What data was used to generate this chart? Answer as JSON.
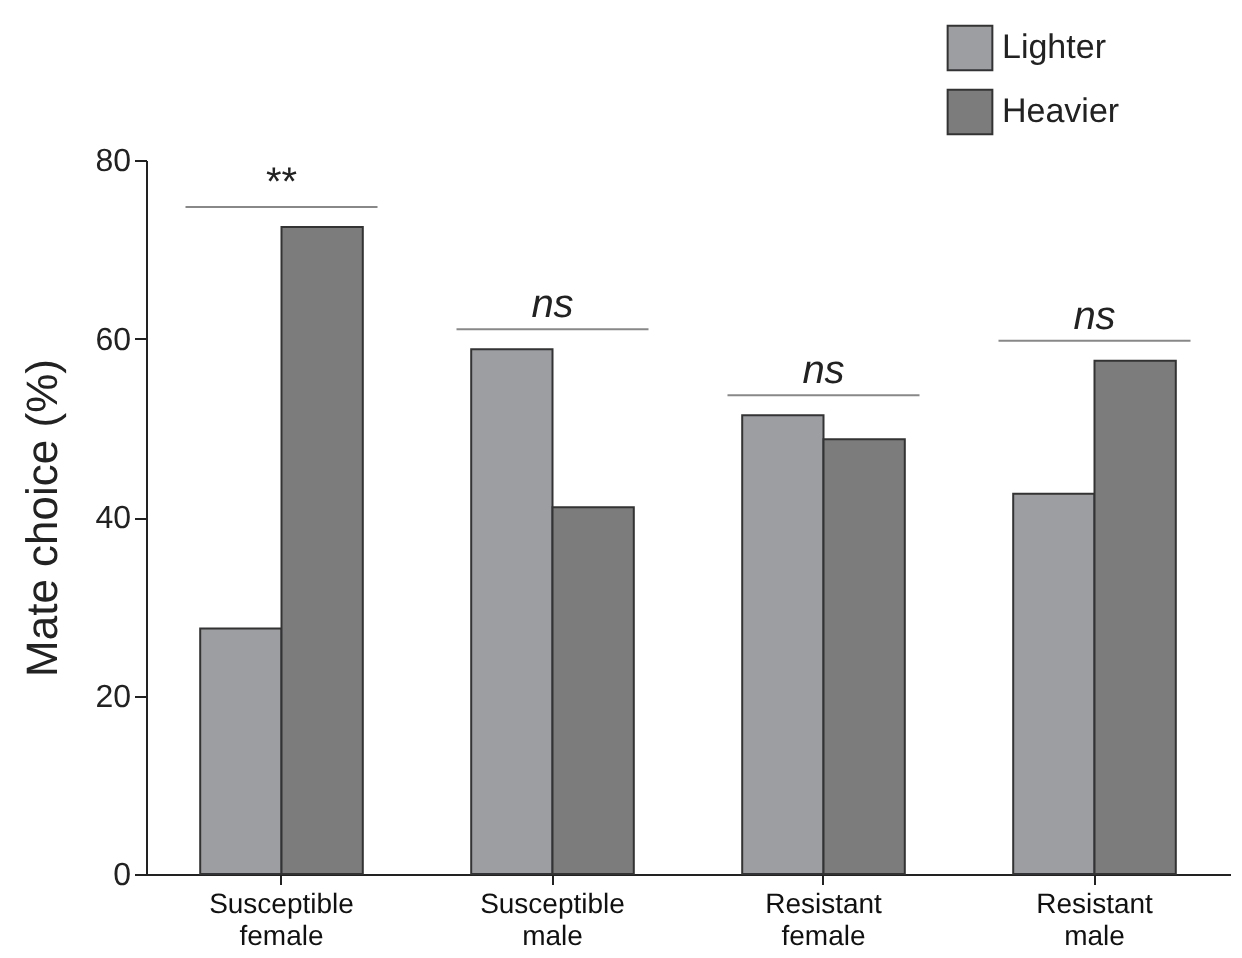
{
  "chart_data": {
    "type": "bar",
    "ylabel": "Mate choice (%)",
    "categories": [
      "Susceptible female",
      "Susceptible male",
      "Resistant female",
      "Resistant male"
    ],
    "series": [
      {
        "name": "Lighter",
        "color": "#9d9ea2",
        "values": [
          27.5,
          58.8,
          51.4,
          42.6
        ]
      },
      {
        "name": "Heavier",
        "color": "#7c7c7c",
        "values": [
          72.5,
          41.1,
          48.7,
          57.5
        ]
      }
    ],
    "ylim": [
      0,
      80
    ],
    "yticks": [
      0,
      20,
      40,
      60,
      80
    ],
    "grid": false,
    "legend": "top right",
    "annotations": [
      {
        "text": "**",
        "x": "Susceptible female",
        "y": 72.5
      },
      {
        "text": "ns",
        "x": "Susceptible male",
        "y": 58.8
      },
      {
        "text": "ns",
        "x": "Resistant female",
        "y": 51.4
      },
      {
        "text": "ns",
        "x": "Resistant male",
        "y": 57.5
      }
    ]
  }
}
